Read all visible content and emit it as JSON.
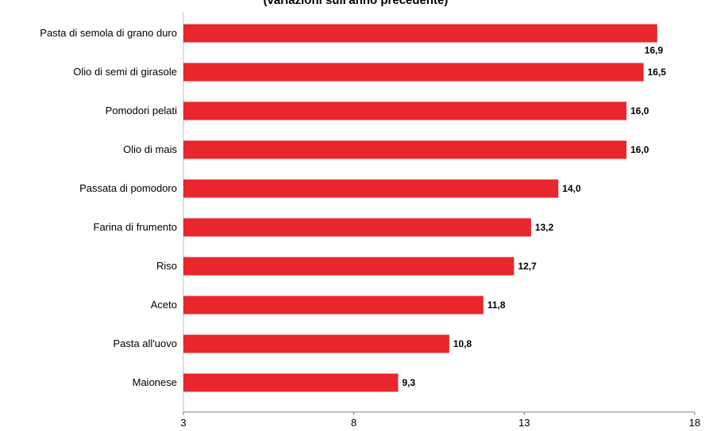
{
  "chart_data": {
    "type": "bar",
    "orientation": "horizontal",
    "subtitle": "(variazioni sull'anno precedente)",
    "categories": [
      "Pasta di semola di grano duro",
      "Olio di semi di girasole",
      "Pomodori pelati",
      "Olio di mais",
      "Passata di pomodoro",
      "Farina di frumento",
      "Riso",
      "Aceto",
      "Pasta all'uovo",
      "Maionese"
    ],
    "values": [
      16.9,
      16.5,
      16.0,
      16.0,
      14.0,
      13.2,
      12.7,
      11.8,
      10.8,
      9.3
    ],
    "value_labels": [
      "16,9",
      "16,5",
      "16,0",
      "16,0",
      "14,0",
      "13,2",
      "12,7",
      "11,8",
      "10,8",
      "9,3"
    ],
    "xlim": [
      3,
      18
    ],
    "x_ticks": [
      3,
      8,
      13,
      18
    ],
    "bar_color": "#e8262b",
    "grid": false,
    "legend": "none"
  }
}
